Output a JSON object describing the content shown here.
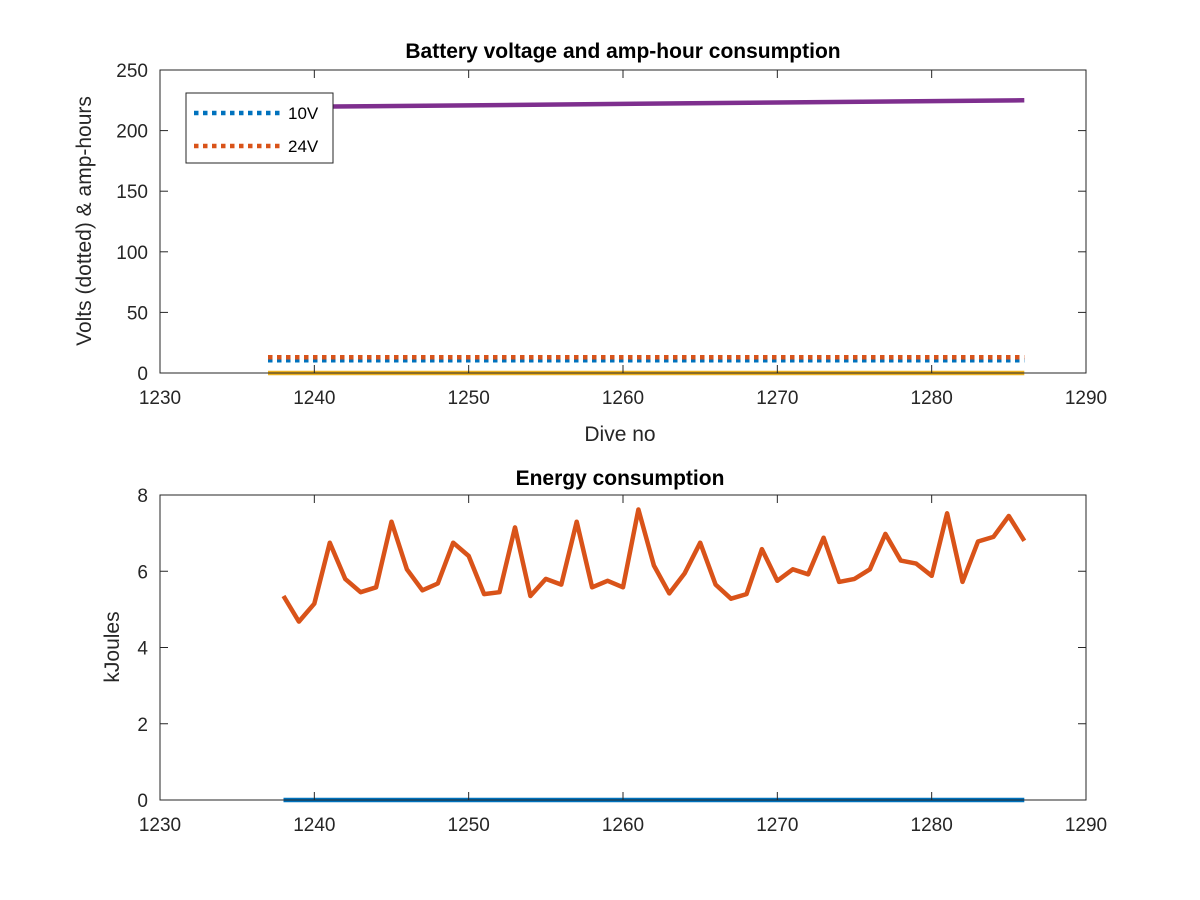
{
  "chart_data": [
    {
      "type": "line",
      "title": "Battery voltage and amp-hour consumption",
      "xlabel": "Dive no",
      "ylabel": "Volts (dotted) & amp-hours",
      "xlim": [
        1230,
        1290
      ],
      "ylim": [
        0,
        250
      ],
      "xticks": [
        "1230",
        "1240",
        "1250",
        "1260",
        "1270",
        "1280",
        "1290"
      ],
      "yticks": [
        "0",
        "50",
        "100",
        "150",
        "200",
        "250"
      ],
      "legend_location": "top-left",
      "series": [
        {
          "name": "10V",
          "style": "dotted",
          "color": "#0072BD",
          "x": [
            1237,
            1286
          ],
          "y": [
            10.5,
            10.5
          ]
        },
        {
          "name": "24V",
          "style": "dotted",
          "color": "#D95319",
          "x": [
            1237,
            1286
          ],
          "y": [
            13,
            13
          ]
        },
        {
          "style": "solid",
          "color": "#EDB120",
          "x": [
            1237,
            1286
          ],
          "y": [
            0,
            0
          ]
        },
        {
          "style": "solid",
          "color": "#7E2F8E",
          "x": [
            1237,
            1250,
            1260,
            1270,
            1280,
            1286
          ],
          "y": [
            219.5,
            220.8,
            222,
            223.2,
            224.3,
            225
          ]
        }
      ]
    },
    {
      "type": "line",
      "title": "Energy consumption",
      "xlabel": "",
      "ylabel": "kJoules",
      "xlim": [
        1230,
        1290
      ],
      "ylim": [
        0,
        8
      ],
      "xticks": [
        "1230",
        "1240",
        "1250",
        "1260",
        "1270",
        "1280",
        "1290"
      ],
      "yticks": [
        "0",
        "2",
        "4",
        "6",
        "8"
      ],
      "series": [
        {
          "style": "solid",
          "color": "#0072BD",
          "x": [
            1238,
            1286
          ],
          "y": [
            0,
            0
          ]
        },
        {
          "style": "solid",
          "color": "#D95319",
          "x": [
            1238,
            1239,
            1240,
            1241,
            1242,
            1243,
            1244,
            1245,
            1246,
            1247,
            1248,
            1249,
            1250,
            1251,
            1252,
            1253,
            1254,
            1255,
            1256,
            1257,
            1258,
            1259,
            1260,
            1261,
            1262,
            1263,
            1264,
            1265,
            1266,
            1267,
            1268,
            1269,
            1270,
            1271,
            1272,
            1273,
            1274,
            1275,
            1276,
            1277,
            1278,
            1279,
            1280,
            1281,
            1282,
            1283,
            1284,
            1285,
            1286
          ],
          "y": [
            5.35,
            4.68,
            5.15,
            6.75,
            5.8,
            5.45,
            5.58,
            7.3,
            6.05,
            5.5,
            5.68,
            6.75,
            6.4,
            5.4,
            5.45,
            7.15,
            5.35,
            5.8,
            5.65,
            7.3,
            5.58,
            5.75,
            5.58,
            7.62,
            6.15,
            5.42,
            5.95,
            6.75,
            5.65,
            5.28,
            5.4,
            6.58,
            5.75,
            6.05,
            5.92,
            6.88,
            5.72,
            5.8,
            6.05,
            6.98,
            6.28,
            6.2,
            5.88,
            7.52,
            5.72,
            6.78,
            6.9,
            7.45,
            6.8
          ]
        }
      ]
    }
  ]
}
